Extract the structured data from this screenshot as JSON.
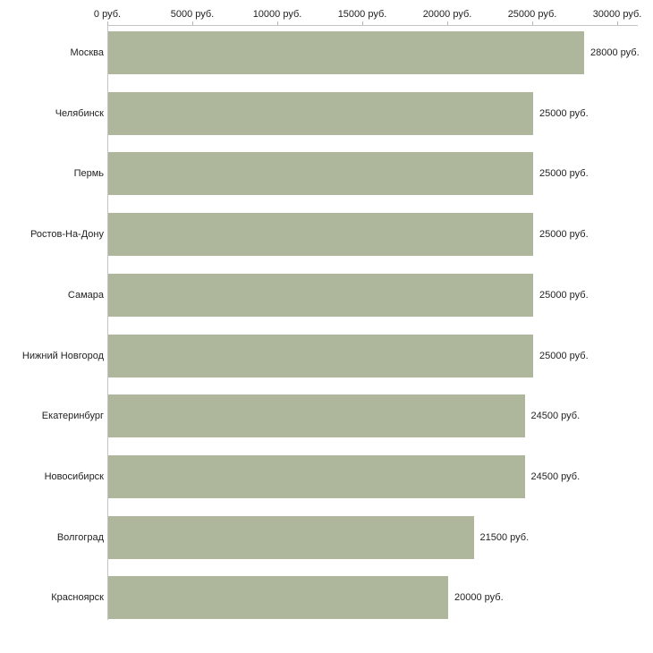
{
  "chart_data": {
    "type": "bar",
    "orientation": "horizontal",
    "title": "",
    "xlabel": "",
    "ylabel": "",
    "xlim": [
      0,
      30000
    ],
    "grid": false,
    "legend": false,
    "categories": [
      "Москва",
      "Челябинск",
      "Пермь",
      "Ростов-На-Дону",
      "Самара",
      "Нижний Новгород",
      "Екатеринбург",
      "Новосибирск",
      "Волгоград",
      "Красноярск"
    ],
    "values": [
      28000,
      25000,
      25000,
      25000,
      25000,
      25000,
      24500,
      24500,
      21500,
      20000
    ],
    "value_labels": [
      "28000 руб.",
      "25000 руб.",
      "25000 руб.",
      "25000 руб.",
      "25000 руб.",
      "25000 руб.",
      "24500 руб.",
      "24500 руб.",
      "21500 руб.",
      "20000 руб."
    ],
    "x_ticks": [
      {
        "value": 0,
        "label": "0 руб."
      },
      {
        "value": 5000,
        "label": "5000 руб."
      },
      {
        "value": 10000,
        "label": "10000 руб."
      },
      {
        "value": 15000,
        "label": "15000 руб."
      },
      {
        "value": 20000,
        "label": "20000 руб."
      },
      {
        "value": 25000,
        "label": "25000 руб."
      },
      {
        "value": 30000,
        "label": "30000 руб."
      }
    ],
    "colors": {
      "bar": "#aeb69b",
      "axis": "#c4c4c4",
      "text": "#222222",
      "background": "#ffffff"
    }
  }
}
